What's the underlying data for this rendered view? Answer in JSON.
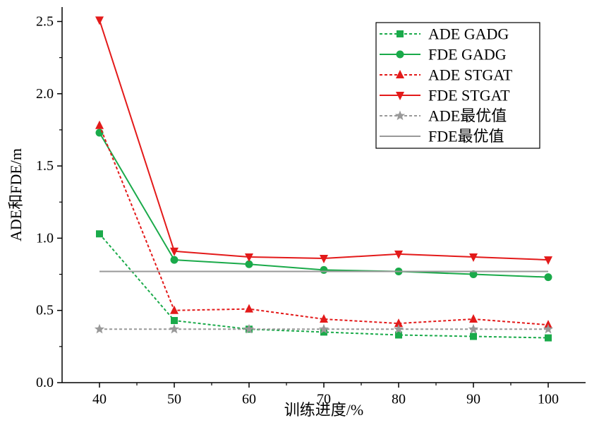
{
  "chart_data": {
    "type": "line",
    "xlabel": "训练进度/%",
    "ylabel": "ADE和FDE/m",
    "xlim": [
      35,
      105
    ],
    "ylim": [
      0,
      2.6
    ],
    "xticks": [
      "40",
      "50",
      "60",
      "70",
      "80",
      "90",
      "100"
    ],
    "yticks": [
      "0.0",
      "0.5",
      "1.0",
      "1.5",
      "2.0",
      "2.5"
    ],
    "grid": false,
    "legend_position": "top-right",
    "x": [
      40,
      50,
      60,
      70,
      80,
      90,
      100
    ],
    "series": [
      {
        "name": "ADE GADG",
        "values": [
          1.03,
          0.43,
          0.37,
          0.35,
          0.33,
          0.32,
          0.31
        ],
        "color": "#1aaa4a",
        "dash": true,
        "marker": "square"
      },
      {
        "name": "FDE GADG",
        "values": [
          1.73,
          0.85,
          0.82,
          0.78,
          0.77,
          0.75,
          0.73
        ],
        "color": "#1aaa4a",
        "dash": false,
        "marker": "circle"
      },
      {
        "name": "ADE STGAT",
        "values": [
          1.78,
          0.5,
          0.51,
          0.44,
          0.41,
          0.44,
          0.4
        ],
        "color": "#e31a1a",
        "dash": true,
        "marker": "triangle-up"
      },
      {
        "name": "FDE STGAT",
        "values": [
          2.51,
          0.91,
          0.87,
          0.86,
          0.89,
          0.87,
          0.85
        ],
        "color": "#e31a1a",
        "dash": false,
        "marker": "triangle-down"
      },
      {
        "name": "ADE最优值",
        "values": [
          0.37,
          0.37,
          0.37,
          0.37,
          0.37,
          0.37,
          0.37
        ],
        "color": "#999999",
        "dash": true,
        "marker": "star"
      },
      {
        "name": "FDE最优值",
        "values": [
          0.77,
          0.77,
          0.77,
          0.77,
          0.77,
          0.77,
          0.77
        ],
        "color": "#999999",
        "dash": false,
        "marker": "none"
      }
    ]
  }
}
